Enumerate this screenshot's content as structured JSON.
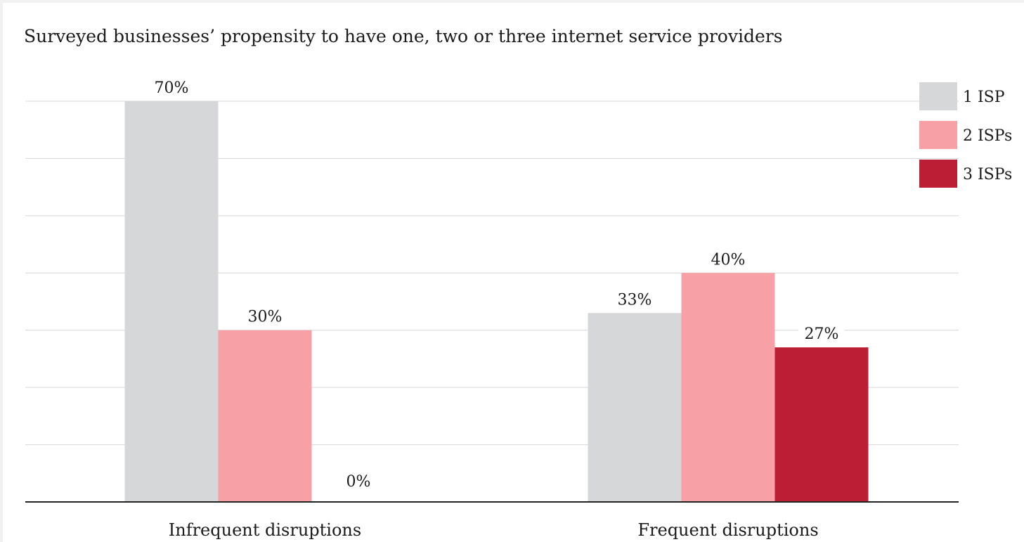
{
  "chart_data": {
    "type": "bar",
    "title": "Surveyed businesses’ propensity to have one, two or three internet service providers",
    "xlabel": "",
    "ylabel": "",
    "categories": [
      "Infrequent disruptions",
      "Frequent disruptions"
    ],
    "series": [
      {
        "name": "1 ISP",
        "values": [
          70,
          33
        ],
        "labels": [
          "70%",
          "33%"
        ],
        "color": "#d6d7d9"
      },
      {
        "name": "2 ISPs",
        "values": [
          30,
          40
        ],
        "labels": [
          "30%",
          "40%"
        ],
        "color": "#f7a1a6"
      },
      {
        "name": "3 ISPs",
        "values": [
          0,
          27
        ],
        "labels": [
          "0%",
          "27%"
        ],
        "color": "#bc1f35"
      }
    ],
    "ylim": [
      0,
      70
    ],
    "grid": true,
    "legend": "top-right"
  }
}
